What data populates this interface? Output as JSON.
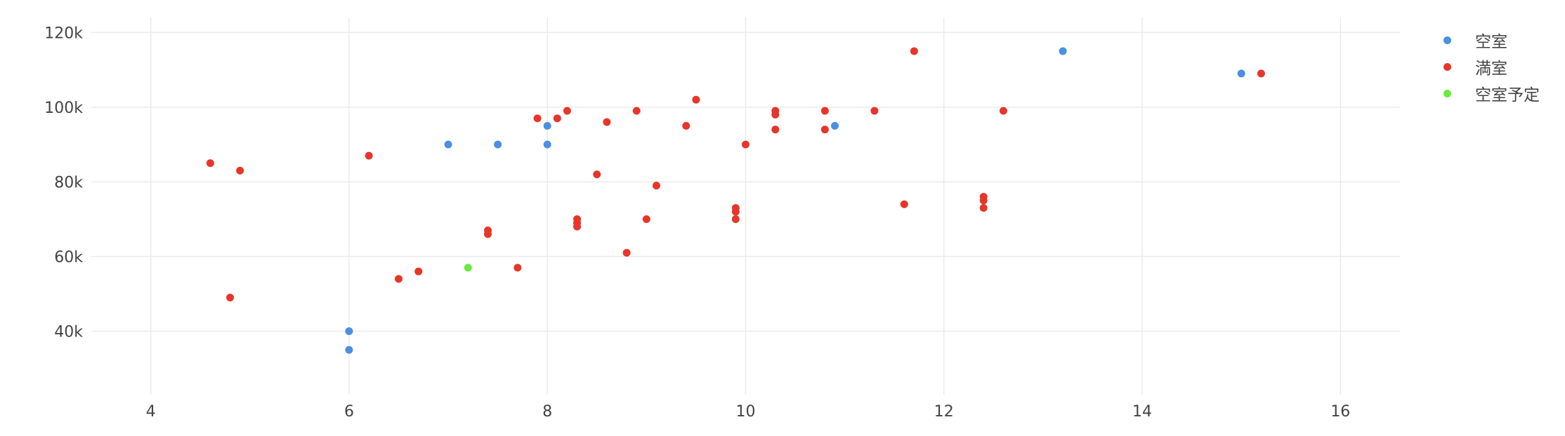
{
  "chart_data": {
    "type": "scatter",
    "title": "",
    "xlabel": "",
    "ylabel": "",
    "xlim": [
      3.4,
      16.6
    ],
    "ylim": [
      23000,
      124000
    ],
    "x_ticks": [
      4,
      6,
      8,
      10,
      12,
      14,
      16
    ],
    "y_ticks": [
      40000,
      60000,
      80000,
      100000,
      120000
    ],
    "x_tick_labels": [
      "4",
      "6",
      "8",
      "10",
      "12",
      "14",
      "16"
    ],
    "y_tick_labels": [
      "40k",
      "60k",
      "80k",
      "100k",
      "120k"
    ],
    "grid": true,
    "legend_position": "top-right",
    "series": [
      {
        "name": "空室",
        "color": "#4a90e2",
        "points": [
          [
            6.0,
            35000
          ],
          [
            6.0,
            40000
          ],
          [
            7.0,
            90000
          ],
          [
            7.5,
            90000
          ],
          [
            8.0,
            95000
          ],
          [
            8.0,
            90000
          ],
          [
            10.9,
            95000
          ],
          [
            13.2,
            115000
          ],
          [
            15.0,
            109000
          ]
        ]
      },
      {
        "name": "満室",
        "color": "#e8352a",
        "points": [
          [
            4.6,
            85000
          ],
          [
            4.8,
            49000
          ],
          [
            4.9,
            83000
          ],
          [
            6.2,
            87000
          ],
          [
            6.5,
            54000
          ],
          [
            6.7,
            56000
          ],
          [
            7.4,
            67000
          ],
          [
            7.4,
            66000
          ],
          [
            7.7,
            57000
          ],
          [
            7.9,
            97000
          ],
          [
            8.1,
            97000
          ],
          [
            8.2,
            99000
          ],
          [
            8.3,
            70000
          ],
          [
            8.3,
            69000
          ],
          [
            8.3,
            68000
          ],
          [
            8.5,
            82000
          ],
          [
            8.6,
            96000
          ],
          [
            8.8,
            61000
          ],
          [
            8.9,
            99000
          ],
          [
            9.0,
            70000
          ],
          [
            9.1,
            79000
          ],
          [
            9.4,
            95000
          ],
          [
            9.5,
            102000
          ],
          [
            9.9,
            73000
          ],
          [
            9.9,
            72000
          ],
          [
            9.9,
            70000
          ],
          [
            10.0,
            90000
          ],
          [
            10.3,
            99000
          ],
          [
            10.3,
            98000
          ],
          [
            10.3,
            94000
          ],
          [
            10.8,
            99000
          ],
          [
            10.8,
            94000
          ],
          [
            11.3,
            99000
          ],
          [
            11.6,
            74000
          ],
          [
            11.7,
            115000
          ],
          [
            12.4,
            76000
          ],
          [
            12.4,
            75000
          ],
          [
            12.4,
            73000
          ],
          [
            12.6,
            99000
          ],
          [
            15.2,
            109000
          ]
        ]
      },
      {
        "name": "空室予定",
        "color": "#6bea3f",
        "points": [
          [
            7.2,
            57000
          ]
        ]
      }
    ]
  }
}
